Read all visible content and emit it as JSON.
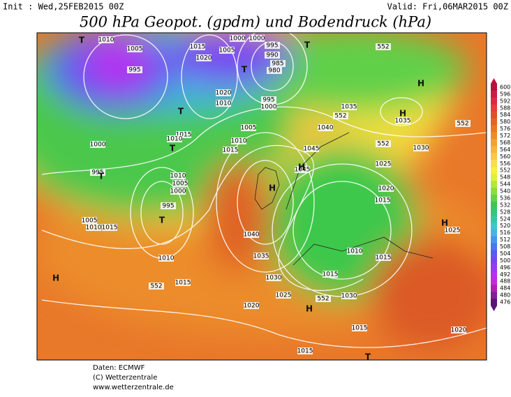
{
  "header": {
    "init": "Init : Wed,25FEB2015 00Z",
    "valid": "Valid: Fri,06MAR2015 00Z",
    "title": "500 hPa Geopot. (gpdm) und Bodendruck (hPa)"
  },
  "colorbar": {
    "ticks": [
      600,
      596,
      592,
      588,
      584,
      580,
      576,
      572,
      568,
      564,
      560,
      556,
      552,
      548,
      544,
      540,
      536,
      532,
      528,
      524,
      520,
      516,
      512,
      508,
      504,
      500,
      496,
      492,
      488,
      484,
      480,
      476
    ],
    "colors": [
      "#b4143c",
      "#c81e46",
      "#dc2846",
      "#e63c3c",
      "#e05028",
      "#e6641e",
      "#ec781e",
      "#f08c28",
      "#f4a032",
      "#f8b43c",
      "#fac846",
      "#fadc50",
      "#f8f03c",
      "#dcf03c",
      "#b4e63c",
      "#8cdc3c",
      "#64d246",
      "#3cc850",
      "#32c878",
      "#32c8a0",
      "#3cc8c8",
      "#46b4e6",
      "#4696f0",
      "#4678f0",
      "#5a5af0",
      "#7846f0",
      "#963cf0",
      "#b432f0",
      "#c828dc",
      "#b41eb4",
      "#821e9b",
      "#5a1478"
    ]
  },
  "isobar_labels": [
    1010,
    1005,
    995,
    1015,
    1005,
    1000,
    1000,
    995,
    990,
    985,
    980,
    1020,
    1020,
    1010,
    995,
    1000,
    1005,
    1035,
    552,
    1035,
    1040,
    1015,
    1010,
    1010,
    1015,
    1000,
    995,
    1045,
    1045,
    552,
    1030,
    1025,
    1020,
    1015,
    1010,
    1005,
    1000,
    995,
    1005,
    1010,
    1015,
    1010,
    1040,
    1035,
    1010,
    1015,
    1025,
    1030,
    1015,
    552,
    1015,
    1025,
    552,
    1030,
    1020,
    1015,
    1020,
    1015,
    552,
    552
  ],
  "pressure_centers": [
    "T",
    "T",
    "T",
    "H",
    "H",
    "T",
    "T",
    "H",
    "H",
    "T",
    "T",
    "H",
    "H",
    "H",
    "T"
  ],
  "footer": [
    "Daten: ECMWF",
    "(C) Wetterzentrale",
    "www.wetterzentrale.de"
  ]
}
